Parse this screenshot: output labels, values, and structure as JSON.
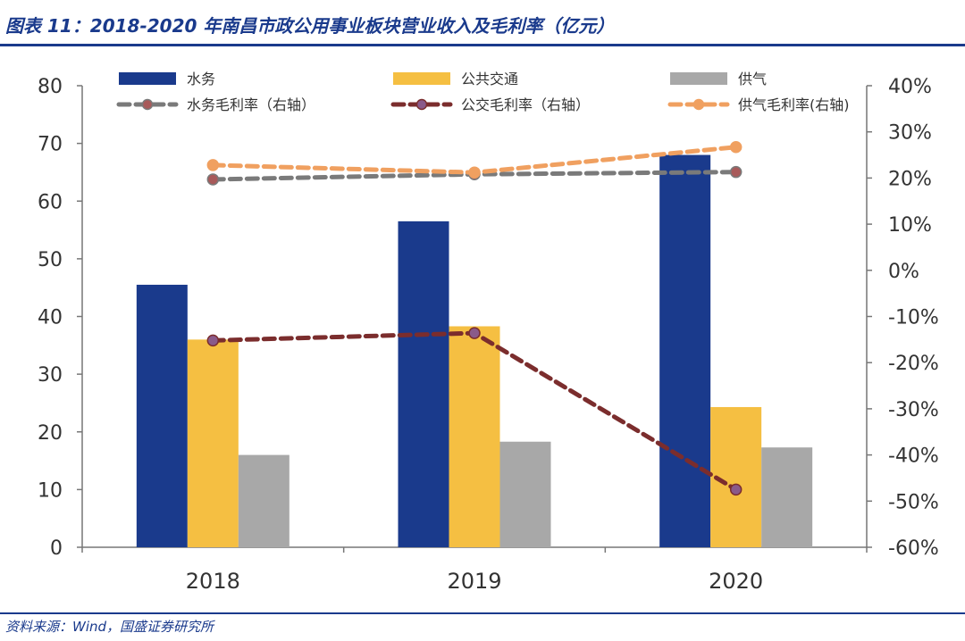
{
  "figure": {
    "title": "图表 11：2018-2020 年南昌市政公用事业板块营业收入及毛利率（亿元）",
    "source": "资料来源：Wind，国盛证券研究所"
  },
  "chart_data": {
    "type": "bar",
    "categories": [
      "2018",
      "2019",
      "2020"
    ],
    "ylim": [
      0,
      80
    ],
    "yticks": [
      0,
      10,
      20,
      30,
      40,
      50,
      60,
      70,
      80
    ],
    "y2lim": [
      -60,
      40
    ],
    "y2ticks": [
      "-60%",
      "-50%",
      "-40%",
      "-30%",
      "-20%",
      "-10%",
      "0%",
      "10%",
      "20%",
      "30%",
      "40%"
    ],
    "y2tick_values": [
      -60,
      -50,
      -40,
      -30,
      -20,
      -10,
      0,
      10,
      20,
      30,
      40
    ],
    "bar_series": [
      {
        "name": "水务",
        "values": [
          45.5,
          56.5,
          68.0
        ],
        "color": "#1a3a8c"
      },
      {
        "name": "公共交通",
        "values": [
          36.0,
          38.3,
          24.3
        ],
        "color": "#f5bf42"
      },
      {
        "name": "供气",
        "values": [
          16.0,
          18.3,
          17.3
        ],
        "color": "#a8a8a8"
      }
    ],
    "line_series": [
      {
        "name": "水务毛利率（右轴）",
        "values": [
          19.7,
          20.8,
          21.3
        ],
        "color": "#7a7a7a",
        "marker": "#a85a5a"
      },
      {
        "name": "公交毛利率（右轴）",
        "values": [
          -15.2,
          -13.6,
          -47.5
        ],
        "color": "#7b2d2d",
        "marker": "#8a5a8a"
      },
      {
        "name": "供气毛利率(右轴)",
        "values": [
          22.8,
          21.2,
          26.7
        ],
        "color": "#f0a060",
        "marker": "#f0a060"
      }
    ],
    "legend_position": "top"
  }
}
